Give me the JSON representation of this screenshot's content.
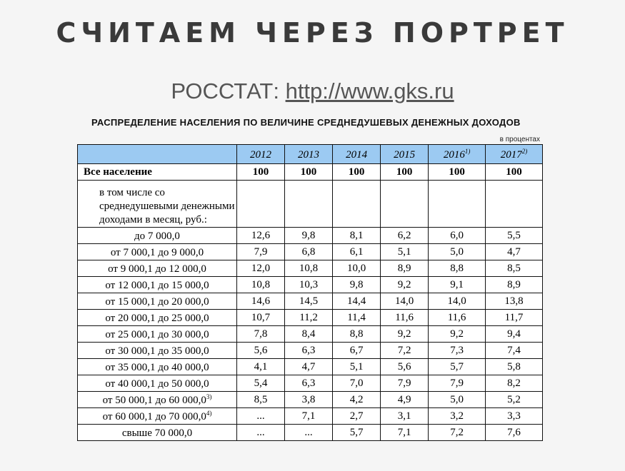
{
  "slide": {
    "title": "СЧИТАЕМ ЧЕРЕЗ ПОРТРЕТ",
    "source_prefix": "РОССТАТ: ",
    "source_link": "http://www.gks.ru"
  },
  "table": {
    "title": "РАСПРЕДЕЛЕНИЕ НАСЕЛЕНИЯ ПО ВЕЛИЧИНЕ СРЕДНЕДУШЕВЫХ ДЕНЕЖНЫХ ДОХОДОВ",
    "unit": "в процентах",
    "years": [
      {
        "label": "2012",
        "note": ""
      },
      {
        "label": "2013",
        "note": ""
      },
      {
        "label": "2014",
        "note": ""
      },
      {
        "label": "2015",
        "note": ""
      },
      {
        "label": "2016",
        "note": "1)"
      },
      {
        "label": "2017",
        "note": "2)"
      }
    ],
    "total": {
      "label": "Все население",
      "values": [
        "100",
        "100",
        "100",
        "100",
        "100",
        "100"
      ]
    },
    "subheader": "в том числе со среднедушевыми денежными доходами в месяц, руб.:",
    "rows": [
      {
        "label": "до 7 000,0",
        "note": "",
        "values": [
          "12,6",
          "9,8",
          "8,1",
          "6,2",
          "6,0",
          "5,5"
        ]
      },
      {
        "label": "от 7 000,1 до 9 000,0",
        "note": "",
        "values": [
          "7,9",
          "6,8",
          "6,1",
          "5,1",
          "5,0",
          "4,7"
        ]
      },
      {
        "label": "от 9 000,1 до 12 000,0",
        "note": "",
        "values": [
          "12,0",
          "10,8",
          "10,0",
          "8,9",
          "8,8",
          "8,5"
        ]
      },
      {
        "label": "от 12 000,1 до 15 000,0",
        "note": "",
        "values": [
          "10,8",
          "10,3",
          "9,8",
          "9,2",
          "9,1",
          "8,9"
        ]
      },
      {
        "label": "от 15 000,1 до 20 000,0",
        "note": "",
        "values": [
          "14,6",
          "14,5",
          "14,4",
          "14,0",
          "14,0",
          "13,8"
        ]
      },
      {
        "label": "от 20 000,1 до 25 000,0",
        "note": "",
        "values": [
          "10,7",
          "11,2",
          "11,4",
          "11,6",
          "11,6",
          "11,7"
        ]
      },
      {
        "label": "от 25 000,1 до 30 000,0",
        "note": "",
        "values": [
          "7,8",
          "8,4",
          "8,8",
          "9,2",
          "9,2",
          "9,4"
        ]
      },
      {
        "label": "от 30 000,1 до 35 000,0",
        "note": "",
        "values": [
          "5,6",
          "6,3",
          "6,7",
          "7,2",
          "7,3",
          "7,4"
        ]
      },
      {
        "label": "от 35 000,1 до 40 000,0",
        "note": "",
        "values": [
          "4,1",
          "4,7",
          "5,1",
          "5,6",
          "5,7",
          "5,8"
        ]
      },
      {
        "label": "от 40 000,1 до 50 000,0",
        "note": "",
        "values": [
          "5,4",
          "6,3",
          "7,0",
          "7,9",
          "7,9",
          "8,2"
        ]
      },
      {
        "label": "от 50 000,1 до 60 000,0",
        "note": "3)",
        "values": [
          "8,5",
          "3,8",
          "4,2",
          "4,9",
          "5,0",
          "5,2"
        ]
      },
      {
        "label": "от 60 000,1 до 70 000,0",
        "note": "4)",
        "values": [
          "...",
          "7,1",
          "2,7",
          "3,1",
          "3,2",
          "3,3"
        ]
      },
      {
        "label": "свыше 70 000,0",
        "note": "",
        "values": [
          "...",
          "...",
          "5,7",
          "7,1",
          "7,2",
          "7,6"
        ]
      }
    ]
  }
}
